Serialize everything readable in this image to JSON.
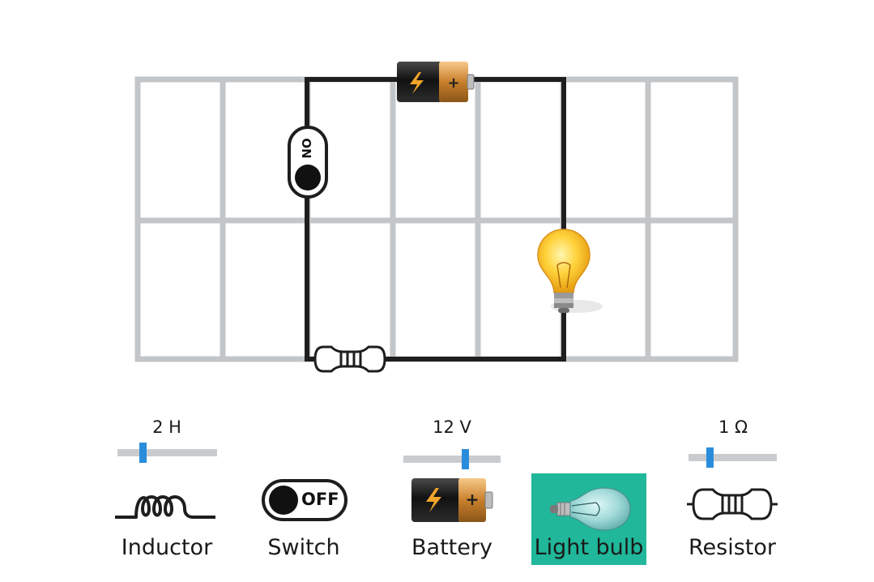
{
  "circuit": {
    "switch_text": "ON"
  },
  "palette": {
    "inductor": {
      "label": "Inductor",
      "value": "2 H",
      "slider_level": 0.24
    },
    "switch": {
      "label": "Switch",
      "state_text": "OFF"
    },
    "battery": {
      "label": "Battery",
      "value": "12 V",
      "slider_level": 0.65
    },
    "light_bulb": {
      "label": "Light bulb",
      "selected": true
    },
    "resistor": {
      "label": "Resistor",
      "value": "1 Ω",
      "slider_level": 0.22
    }
  },
  "colors": {
    "grid": "#c3c6c8",
    "wire": "#1e1e1e",
    "slider_track": "#c9cccf",
    "slider_thumb": "#2a8ddb",
    "selected": "#20b79a"
  }
}
